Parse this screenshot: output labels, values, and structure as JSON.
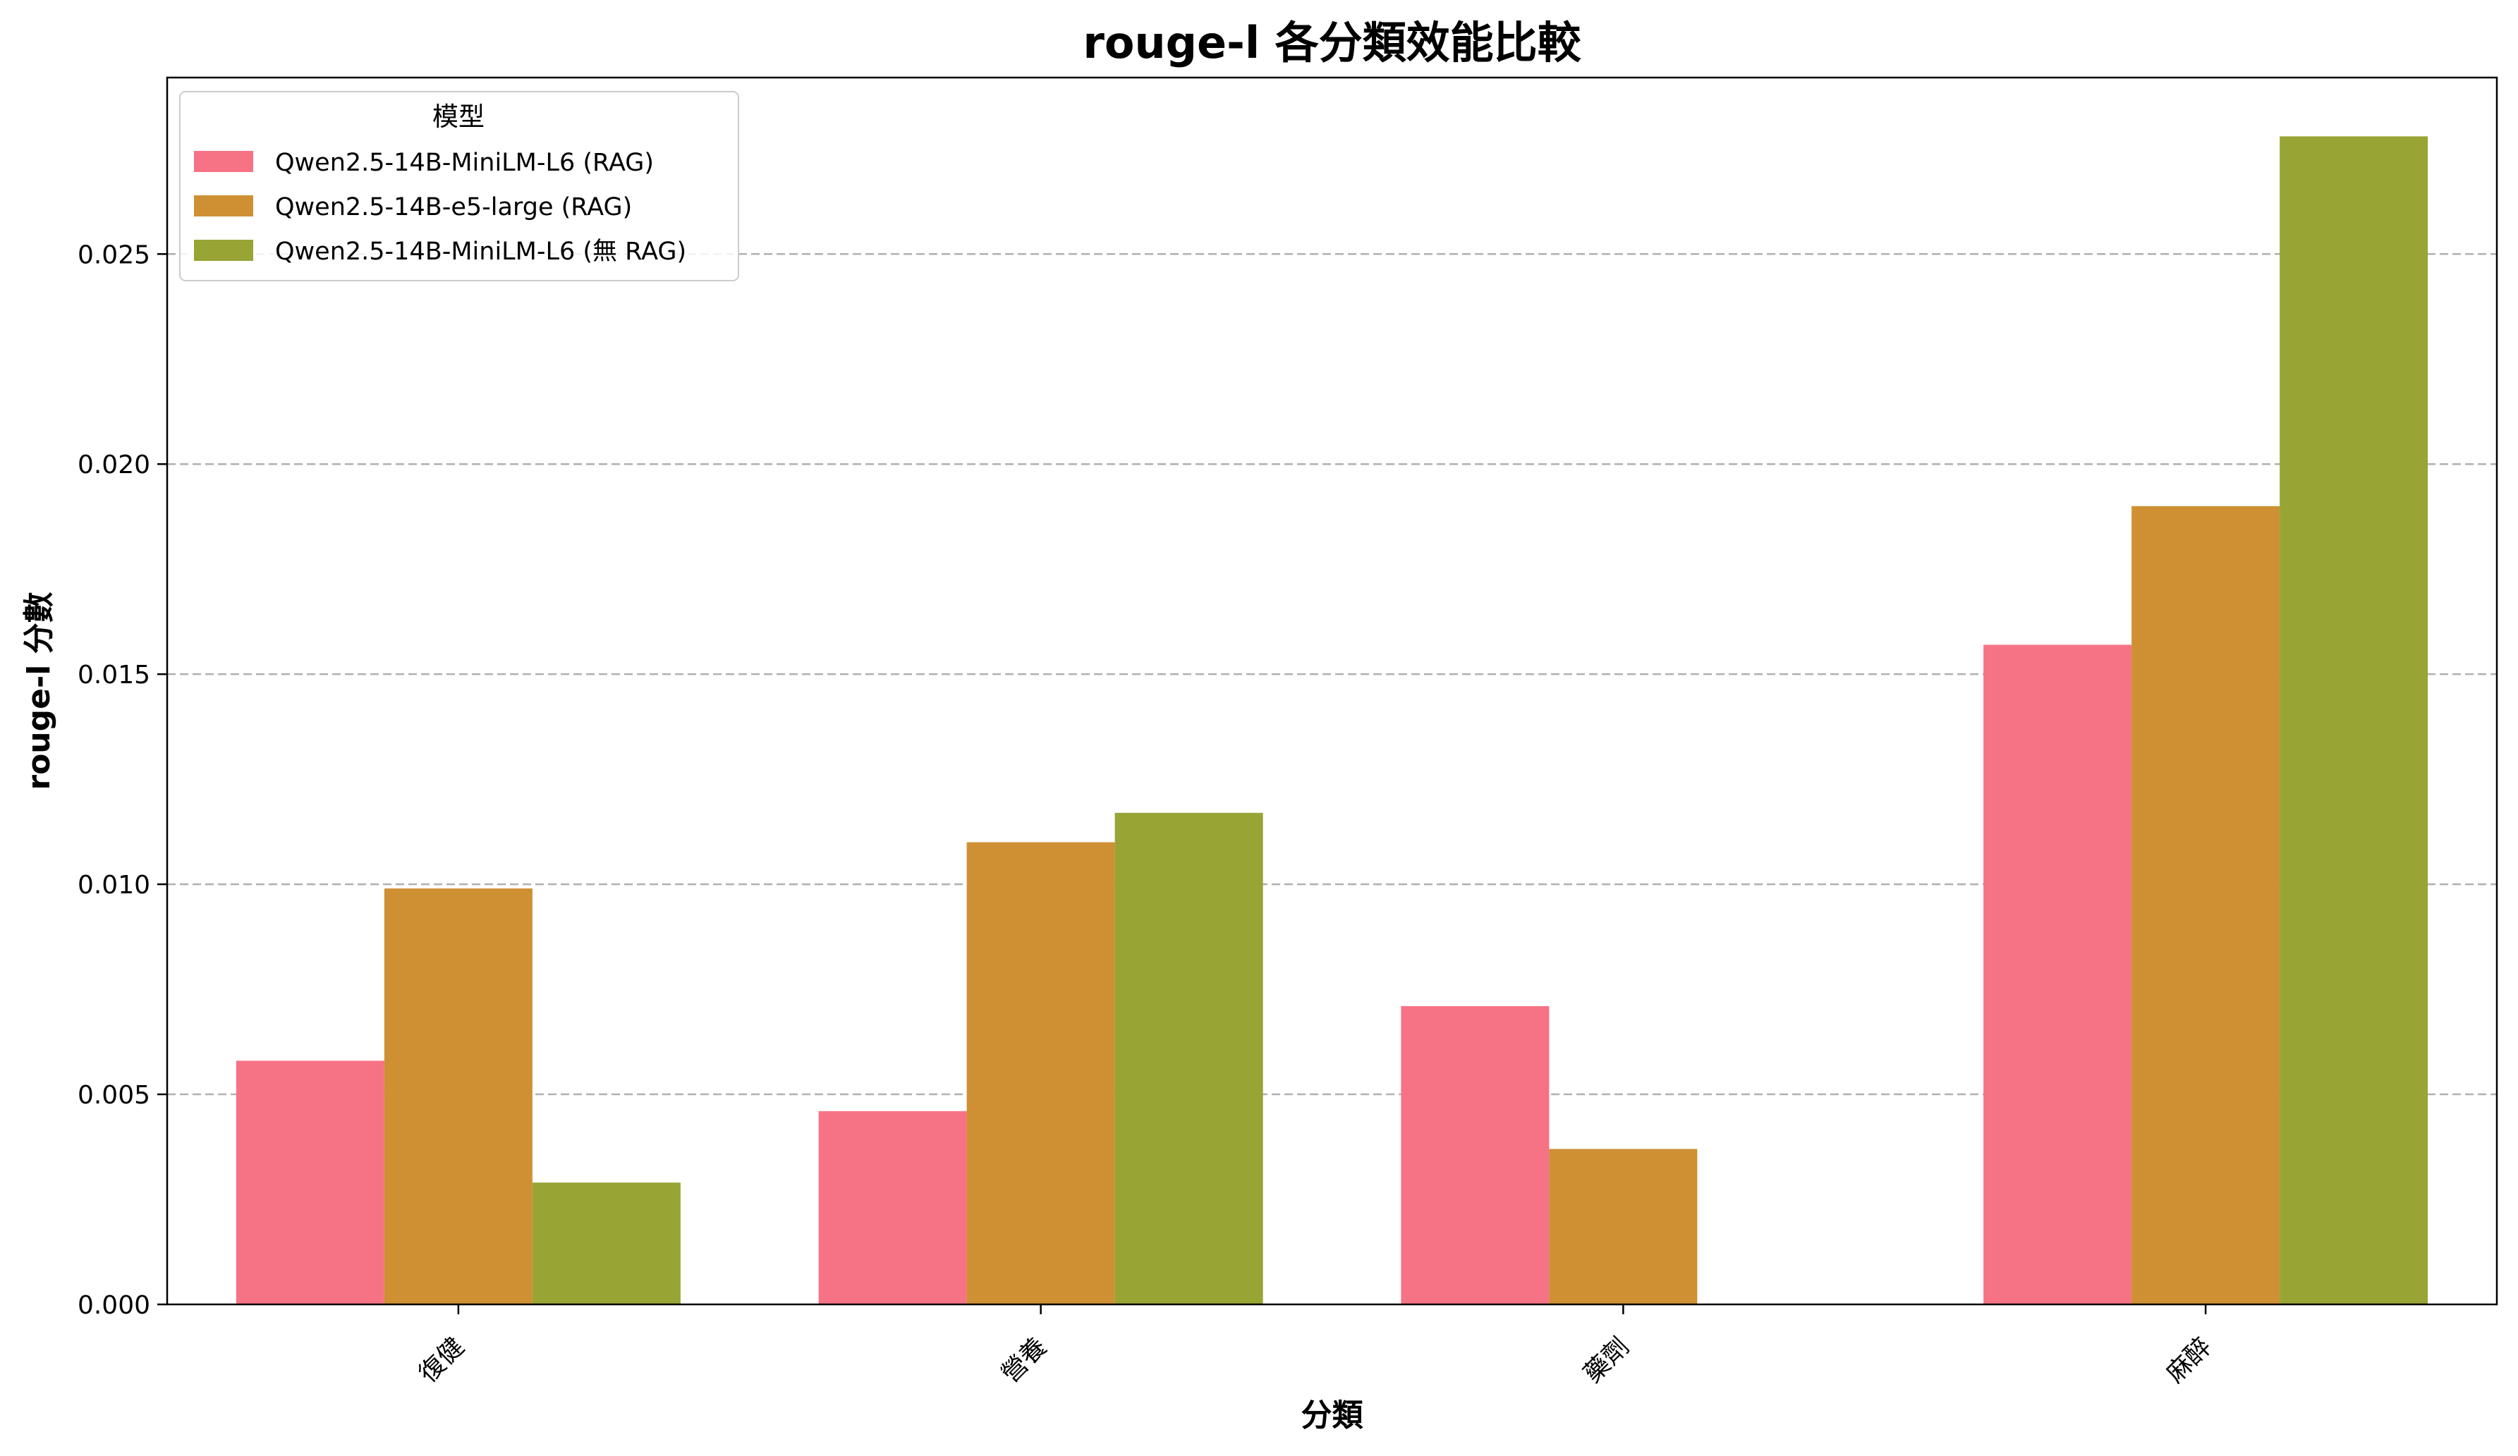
{
  "chart_data": {
    "type": "bar",
    "title": "rouge-l 各分類效能比較",
    "xlabel": "分類",
    "ylabel": "rouge-l 分數",
    "categories": [
      "復健",
      "營養",
      "藥劑",
      "麻醉"
    ],
    "series": [
      {
        "name": "Qwen2.5-14B-MiniLM-L6 (RAG)",
        "color": "#f67385",
        "values": [
          0.0058,
          0.0046,
          0.0071,
          0.0157
        ]
      },
      {
        "name": "Qwen2.5-14B-e5-large (RAG)",
        "color": "#ce9033",
        "values": [
          0.0099,
          0.011,
          0.0037,
          0.019
        ]
      },
      {
        "name": "Qwen2.5-14B-MiniLM-L6 (無 RAG)",
        "color": "#98a434",
        "values": [
          0.0029,
          0.0117,
          0.0,
          0.0278
        ]
      }
    ],
    "yticks": [
      "0.000",
      "0.005",
      "0.010",
      "0.015",
      "0.020",
      "0.025"
    ],
    "ylim": [
      0,
      0.0292
    ],
    "grid": "y-dashed",
    "legend": {
      "title": "模型",
      "position": "top-left"
    }
  }
}
